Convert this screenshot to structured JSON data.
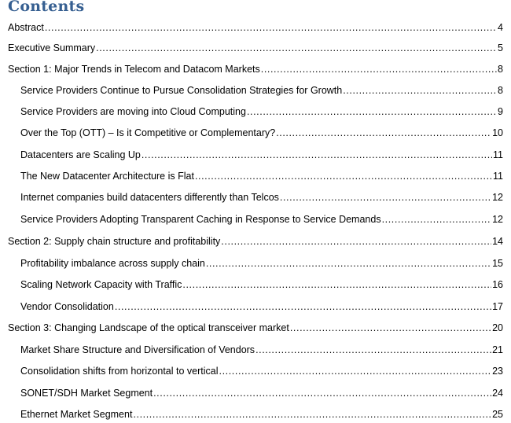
{
  "title": "Contents",
  "entries": [
    {
      "label": "Abstract",
      "page": "4",
      "level": 1
    },
    {
      "label": "Executive Summary",
      "page": "5",
      "level": 1
    },
    {
      "label": "Section 1: Major Trends in Telecom and Datacom Markets",
      "page": "8",
      "level": 1
    },
    {
      "label": "Service Providers Continue to Pursue Consolidation Strategies for Growth",
      "page": "8",
      "level": 2
    },
    {
      "label": "Service Providers are moving into Cloud Computing",
      "page": "9",
      "level": 2
    },
    {
      "label": "Over the Top (OTT) – Is it Competitive or Complementary?",
      "page": "10",
      "level": 2
    },
    {
      "label": "Datacenters are Scaling Up",
      "page": "11",
      "level": 2
    },
    {
      "label": "The New Datacenter Architecture is Flat",
      "page": "11",
      "level": 2
    },
    {
      "label": "Internet companies build datacenters differently than Telcos",
      "page": "12",
      "level": 2
    },
    {
      "label": "Service Providers Adopting Transparent Caching in Response to Service Demands",
      "page": "12",
      "level": 2
    },
    {
      "label": "Section 2: Supply chain structure and profitability",
      "page": "14",
      "level": 1
    },
    {
      "label": "Profitability imbalance across supply chain",
      "page": "15",
      "level": 2
    },
    {
      "label": "Scaling Network Capacity with Traffic",
      "page": "16",
      "level": 2
    },
    {
      "label": "Vendor Consolidation",
      "page": "17",
      "level": 2
    },
    {
      "label": "Section 3: Changing Landscape of the optical transceiver market",
      "page": "20",
      "level": 1
    },
    {
      "label": "Market Share Structure and Diversification of Vendors",
      "page": "21",
      "level": 2
    },
    {
      "label": "Consolidation shifts from horizontal to vertical",
      "page": "23",
      "level": 2
    },
    {
      "label": "SONET/SDH Market Segment",
      "page": "24",
      "level": 2
    },
    {
      "label": "Ethernet Market Segment",
      "page": "25",
      "level": 2
    }
  ]
}
